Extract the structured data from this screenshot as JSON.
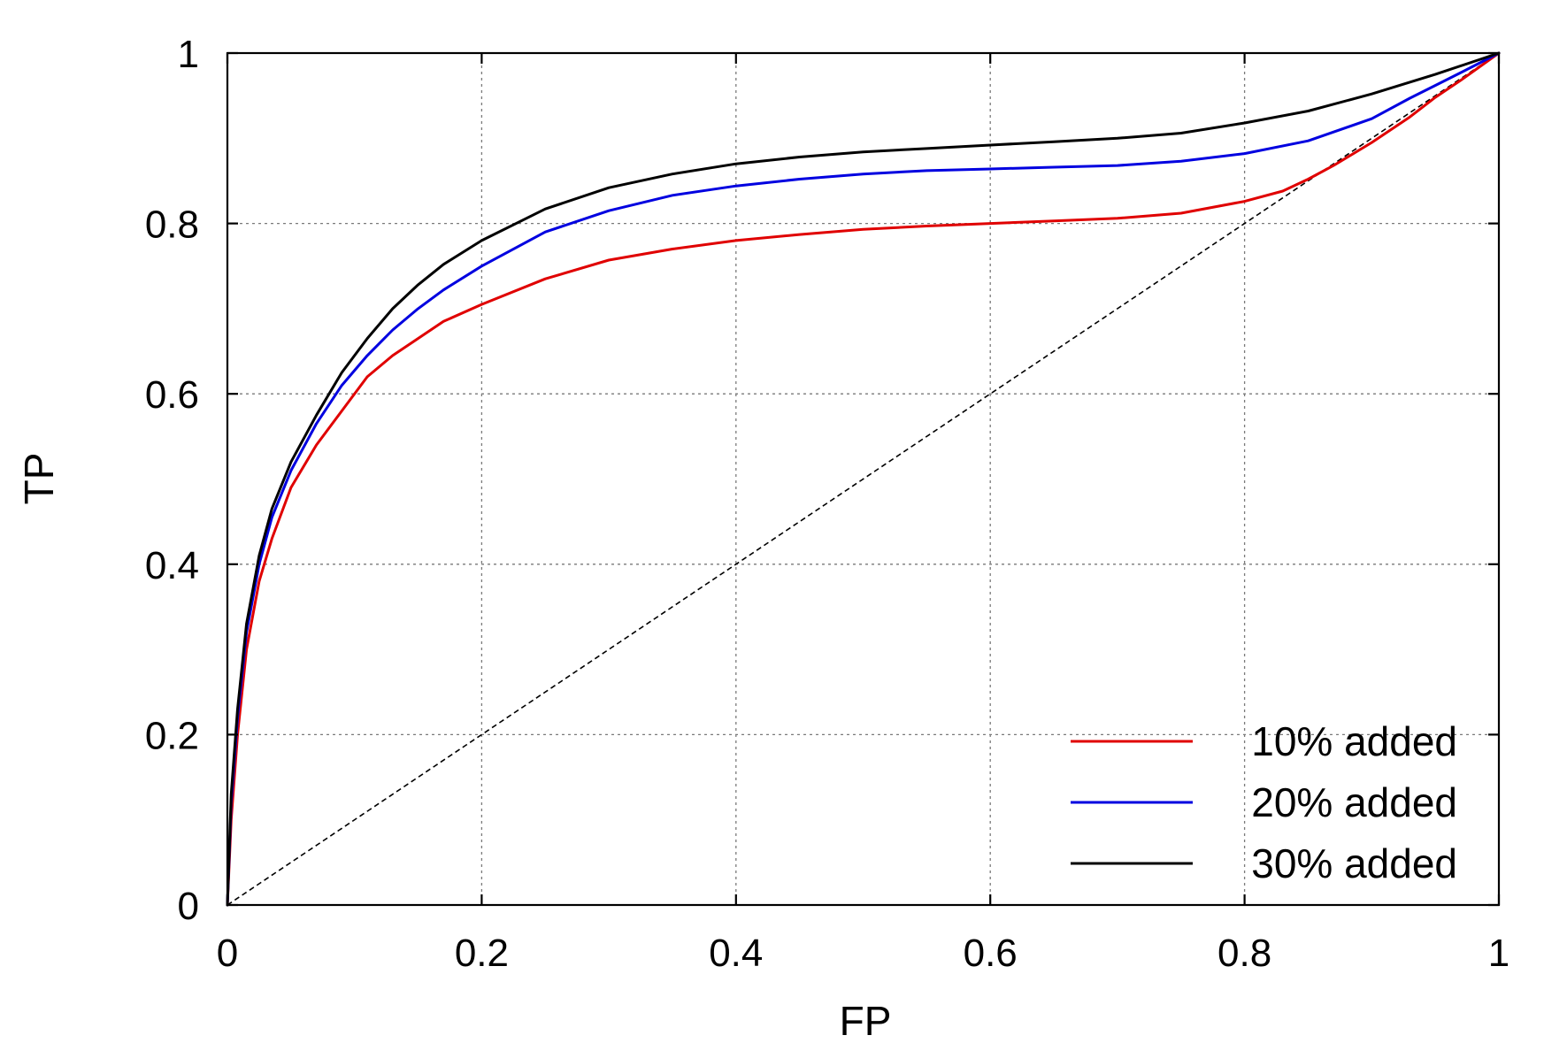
{
  "chart_data": {
    "type": "line",
    "title": "",
    "xlabel": "FP",
    "ylabel": "TP",
    "xlim": [
      0,
      1
    ],
    "ylim": [
      0,
      1
    ],
    "x_ticks": [
      "0",
      "0.2",
      "0.4",
      "0.6",
      "0.8",
      "1"
    ],
    "y_ticks": [
      "0",
      "0.2",
      "0.4",
      "0.6",
      "0.8",
      "1"
    ],
    "grid": true,
    "legend_position": "bottom-right",
    "reference_line": {
      "style": "dashed",
      "color": "#000000",
      "points": [
        [
          0,
          0
        ],
        [
          1,
          1
        ]
      ]
    },
    "series": [
      {
        "name": "10% added",
        "color": "#e00000",
        "points": [
          [
            0,
            0
          ],
          [
            0.003,
            0.1
          ],
          [
            0.008,
            0.2
          ],
          [
            0.015,
            0.3
          ],
          [
            0.025,
            0.38
          ],
          [
            0.035,
            0.43
          ],
          [
            0.05,
            0.49
          ],
          [
            0.07,
            0.54
          ],
          [
            0.09,
            0.58
          ],
          [
            0.11,
            0.62
          ],
          [
            0.13,
            0.645
          ],
          [
            0.15,
            0.665
          ],
          [
            0.17,
            0.685
          ],
          [
            0.2,
            0.705
          ],
          [
            0.25,
            0.735
          ],
          [
            0.3,
            0.757
          ],
          [
            0.35,
            0.77
          ],
          [
            0.4,
            0.78
          ],
          [
            0.45,
            0.787
          ],
          [
            0.5,
            0.793
          ],
          [
            0.55,
            0.797
          ],
          [
            0.6,
            0.8
          ],
          [
            0.65,
            0.803
          ],
          [
            0.7,
            0.806
          ],
          [
            0.75,
            0.812
          ],
          [
            0.8,
            0.826
          ],
          [
            0.83,
            0.838
          ],
          [
            0.85,
            0.852
          ],
          [
            0.87,
            0.868
          ],
          [
            0.9,
            0.895
          ],
          [
            0.93,
            0.925
          ],
          [
            0.95,
            0.948
          ],
          [
            0.97,
            0.968
          ],
          [
            1,
            1
          ]
        ]
      },
      {
        "name": "20% added",
        "color": "#0000e0",
        "points": [
          [
            0,
            0
          ],
          [
            0.003,
            0.12
          ],
          [
            0.008,
            0.22
          ],
          [
            0.015,
            0.32
          ],
          [
            0.025,
            0.4
          ],
          [
            0.035,
            0.455
          ],
          [
            0.05,
            0.51
          ],
          [
            0.07,
            0.565
          ],
          [
            0.09,
            0.61
          ],
          [
            0.11,
            0.645
          ],
          [
            0.13,
            0.675
          ],
          [
            0.15,
            0.7
          ],
          [
            0.17,
            0.722
          ],
          [
            0.2,
            0.75
          ],
          [
            0.25,
            0.79
          ],
          [
            0.3,
            0.815
          ],
          [
            0.35,
            0.833
          ],
          [
            0.4,
            0.844
          ],
          [
            0.45,
            0.852
          ],
          [
            0.5,
            0.858
          ],
          [
            0.55,
            0.862
          ],
          [
            0.6,
            0.864
          ],
          [
            0.65,
            0.866
          ],
          [
            0.7,
            0.868
          ],
          [
            0.75,
            0.873
          ],
          [
            0.8,
            0.882
          ],
          [
            0.85,
            0.897
          ],
          [
            0.9,
            0.923
          ],
          [
            0.93,
            0.947
          ],
          [
            0.95,
            0.962
          ],
          [
            0.97,
            0.977
          ],
          [
            1,
            1
          ]
        ]
      },
      {
        "name": "30% added",
        "color": "#000000",
        "points": [
          [
            0,
            0
          ],
          [
            0.003,
            0.13
          ],
          [
            0.008,
            0.23
          ],
          [
            0.015,
            0.33
          ],
          [
            0.025,
            0.41
          ],
          [
            0.035,
            0.465
          ],
          [
            0.05,
            0.52
          ],
          [
            0.07,
            0.575
          ],
          [
            0.09,
            0.625
          ],
          [
            0.11,
            0.665
          ],
          [
            0.13,
            0.7
          ],
          [
            0.15,
            0.728
          ],
          [
            0.17,
            0.752
          ],
          [
            0.2,
            0.78
          ],
          [
            0.25,
            0.817
          ],
          [
            0.3,
            0.842
          ],
          [
            0.35,
            0.858
          ],
          [
            0.4,
            0.87
          ],
          [
            0.45,
            0.878
          ],
          [
            0.5,
            0.884
          ],
          [
            0.55,
            0.888
          ],
          [
            0.6,
            0.892
          ],
          [
            0.65,
            0.896
          ],
          [
            0.7,
            0.9
          ],
          [
            0.75,
            0.906
          ],
          [
            0.8,
            0.918
          ],
          [
            0.85,
            0.932
          ],
          [
            0.9,
            0.952
          ],
          [
            0.95,
            0.975
          ],
          [
            1,
            1
          ]
        ]
      }
    ]
  }
}
